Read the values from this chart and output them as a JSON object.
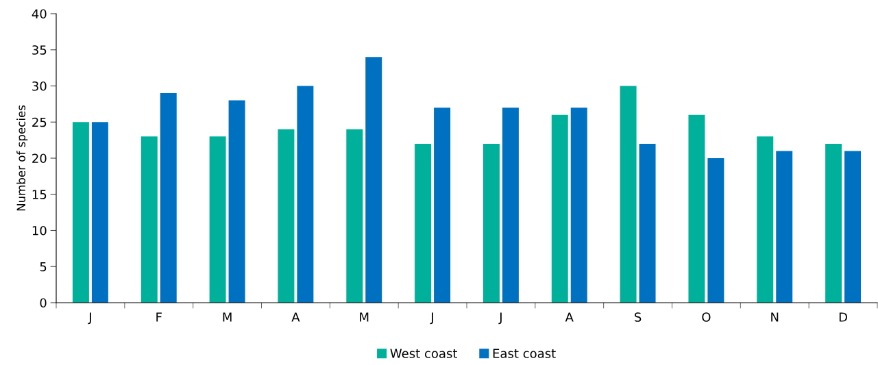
{
  "chart_data": {
    "type": "bar",
    "ylabel": "Number of species",
    "categories": [
      "J",
      "F",
      "M",
      "A",
      "M",
      "J",
      "J",
      "A",
      "S",
      "O",
      "N",
      "D"
    ],
    "series": [
      {
        "name": "West coast",
        "color": "#00b09b",
        "values": [
          25,
          23,
          23,
          24,
          24,
          22,
          22,
          26,
          30,
          26,
          23,
          22
        ]
      },
      {
        "name": "East coast",
        "color": "#0070c0",
        "values": [
          25,
          29,
          28,
          30,
          34,
          27,
          27,
          27,
          22,
          20,
          21,
          21
        ]
      }
    ],
    "ylim": [
      0,
      40
    ],
    "yticks": [
      0,
      5,
      10,
      15,
      20,
      25,
      30,
      35,
      40
    ],
    "grid": false,
    "legend": "bottom"
  }
}
